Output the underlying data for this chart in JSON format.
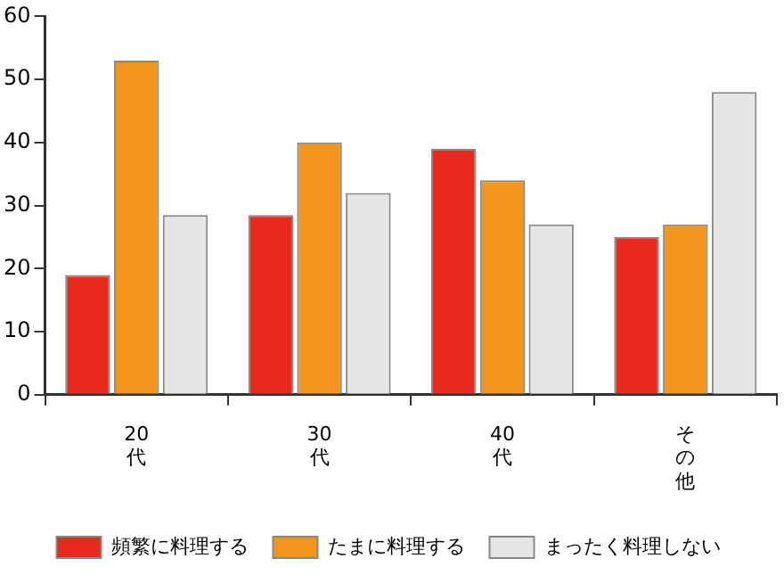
{
  "chart_data": {
    "type": "bar",
    "categories": [
      "20代",
      "30代",
      "40代",
      "その他"
    ],
    "series": [
      {
        "name": "頻繁に料理する",
        "color": "#e8291b",
        "values": [
          19,
          28.5,
          39,
          25
        ]
      },
      {
        "name": "たまに料理する",
        "color": "#f1961b",
        "values": [
          53,
          40,
          34,
          27
        ]
      },
      {
        "name": "まったく料理しない",
        "color": "#e6e6e6",
        "values": [
          28.5,
          32,
          27,
          48
        ]
      }
    ],
    "ylim": [
      0,
      60
    ],
    "yticks": [
      0,
      10,
      20,
      30,
      40,
      50,
      60
    ],
    "grid": false,
    "legend": "bottom"
  }
}
